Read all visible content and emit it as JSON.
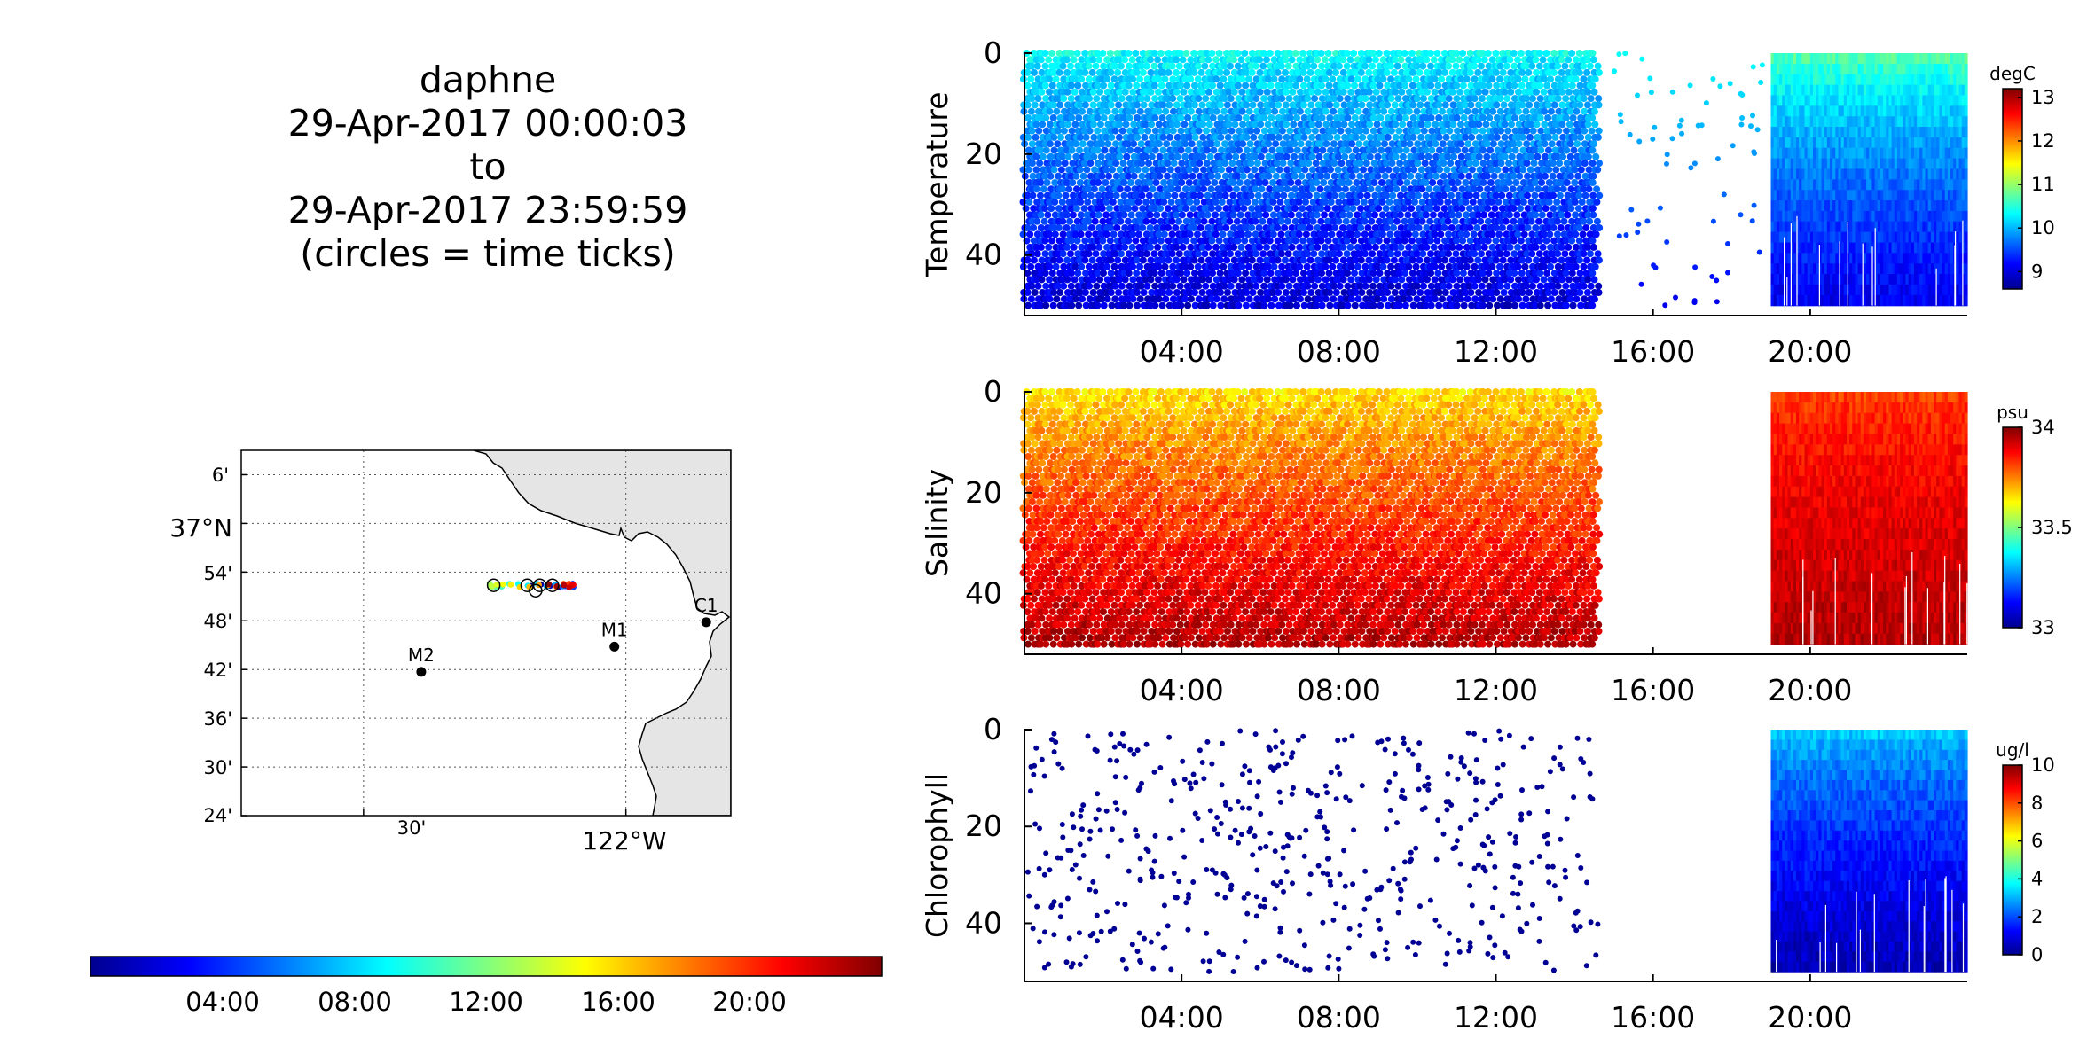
{
  "title": {
    "line1": "daphne",
    "line2": "29-Apr-2017 00:00:03",
    "line3": "to",
    "line4": "29-Apr-2017 23:59:59",
    "line5": "(circles = time ticks)"
  },
  "map": {
    "lat_labels": [
      "6'",
      "37°N",
      "54'",
      "48'",
      "42'",
      "36'",
      "30'",
      "24'"
    ],
    "lon_labels": [
      "30'",
      "122°W"
    ],
    "stations": [
      {
        "name": "C1",
        "lon": -121.847,
        "lat": 36.797
      },
      {
        "name": "M1",
        "lon": -122.022,
        "lat": 36.747
      },
      {
        "name": "M2",
        "lon": -122.39,
        "lat": 36.695
      }
    ],
    "track": {
      "lon_range": [
        -122.26,
        -122.1
      ],
      "lat": 36.873
    },
    "land_color": "#e5e5e5",
    "grid": "dotted"
  },
  "time_colorbar": {
    "ticks": [
      "04:00",
      "08:00",
      "12:00",
      "16:00",
      "20:00"
    ],
    "range_hours": [
      0,
      24
    ],
    "colormap": "jet"
  },
  "chart_data": [
    {
      "type": "scatter",
      "ylabel": "Temperature",
      "units": "degC",
      "x_ticks": [
        "04:00",
        "08:00",
        "12:00",
        "16:00",
        "20:00"
      ],
      "xlim_hours": [
        0,
        24
      ],
      "y_ticks": [
        "0",
        "20",
        "40"
      ],
      "ylim": [
        52,
        0
      ],
      "color_ticks": [
        "13",
        "12",
        "11",
        "10",
        "9"
      ],
      "crange": [
        8.5,
        13.2
      ],
      "colormap": "jet",
      "segments": [
        {
          "hours": [
            0,
            14.6
          ],
          "surface_value": 10.3,
          "bottom_value": 8.9
        },
        {
          "hours": [
            15.0,
            18.8
          ],
          "surface_value": 10.3,
          "bottom_value": 9.0,
          "sparse": true
        },
        {
          "hours": [
            19.0,
            24.0
          ],
          "surface_value": 10.8,
          "bottom_value": 9.0,
          "dense": true
        }
      ]
    },
    {
      "type": "scatter",
      "ylabel": "Salinity",
      "units": "psu",
      "x_ticks": [
        "04:00",
        "08:00",
        "12:00",
        "16:00",
        "20:00"
      ],
      "xlim_hours": [
        0,
        24
      ],
      "y_ticks": [
        "0",
        "20",
        "40"
      ],
      "ylim": [
        52,
        0
      ],
      "color_ticks": [
        "34",
        "33.5",
        "33"
      ],
      "crange": [
        33.0,
        34.0
      ],
      "colormap": "jet",
      "segments": [
        {
          "hours": [
            0,
            14.6
          ],
          "surface_value": 33.65,
          "bottom_value": 33.95
        },
        {
          "hours": [
            19.0,
            24.0
          ],
          "surface_value": 33.8,
          "bottom_value": 33.95,
          "dense": true
        }
      ]
    },
    {
      "type": "scatter",
      "ylabel": "Chlorophyll",
      "units": "ug/l",
      "x_ticks": [
        "04:00",
        "08:00",
        "12:00",
        "16:00",
        "20:00"
      ],
      "xlim_hours": [
        0,
        24
      ],
      "y_ticks": [
        "0",
        "20",
        "40"
      ],
      "ylim": [
        52,
        0
      ],
      "color_ticks": [
        "10",
        "8",
        "6",
        "4",
        "2",
        "0"
      ],
      "crange": [
        0,
        10
      ],
      "colormap": "jet",
      "segments": [
        {
          "hours": [
            0,
            14.6
          ],
          "surface_value": 0.2,
          "bottom_value": 0.2,
          "sparse": true
        },
        {
          "hours": [
            19.0,
            24.0
          ],
          "surface_value": 3.5,
          "bottom_value": 0.5,
          "dense": true
        }
      ]
    }
  ]
}
